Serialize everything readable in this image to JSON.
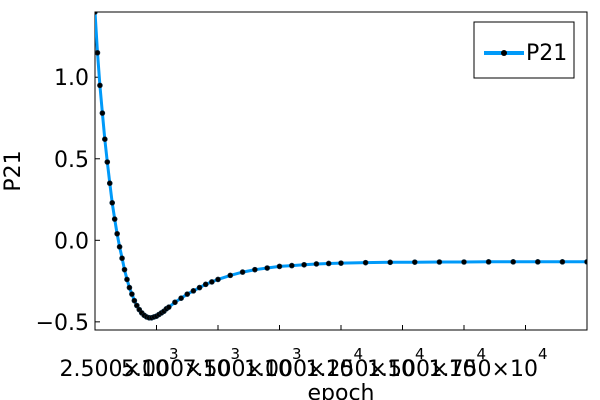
{
  "chart_data": {
    "type": "scatter",
    "xlabel": "epoch",
    "ylabel": "P21",
    "xlim": [
      0,
      20000
    ],
    "ylim": [
      -0.55,
      1.4
    ],
    "grid": false,
    "legend_position": "top-right",
    "x_ticks": [
      {
        "value": 2500,
        "mantissa": "2.500",
        "exponent": "3"
      },
      {
        "value": 5000,
        "mantissa": "5.000",
        "exponent": "3"
      },
      {
        "value": 7500,
        "mantissa": "7.500",
        "exponent": "3"
      },
      {
        "value": 10000,
        "mantissa": "1.000",
        "exponent": "4"
      },
      {
        "value": 12500,
        "mantissa": "1.250",
        "exponent": "4"
      },
      {
        "value": 15000,
        "mantissa": "1.500",
        "exponent": "4"
      },
      {
        "value": 17500,
        "mantissa": "1.750",
        "exponent": "4"
      }
    ],
    "y_ticks": [
      {
        "value": -0.5,
        "label": "−0.5"
      },
      {
        "value": 0.0,
        "label": "0.0"
      },
      {
        "value": 0.5,
        "label": "0.5"
      },
      {
        "value": 1.0,
        "label": "1.0"
      }
    ],
    "series": [
      {
        "name": "P21",
        "color": "#009AF9",
        "marker_color": "#000000",
        "points": [
          [
            0,
            1.4
          ],
          [
            100,
            1.15
          ],
          [
            200,
            0.95
          ],
          [
            300,
            0.78
          ],
          [
            400,
            0.62
          ],
          [
            500,
            0.48
          ],
          [
            600,
            0.35
          ],
          [
            700,
            0.23
          ],
          [
            800,
            0.13
          ],
          [
            900,
            0.04
          ],
          [
            1000,
            -0.04
          ],
          [
            1100,
            -0.11
          ],
          [
            1200,
            -0.18
          ],
          [
            1300,
            -0.24
          ],
          [
            1400,
            -0.29
          ],
          [
            1500,
            -0.33
          ],
          [
            1600,
            -0.37
          ],
          [
            1700,
            -0.4
          ],
          [
            1800,
            -0.425
          ],
          [
            1900,
            -0.445
          ],
          [
            2000,
            -0.46
          ],
          [
            2100,
            -0.47
          ],
          [
            2200,
            -0.475
          ],
          [
            2300,
            -0.475
          ],
          [
            2400,
            -0.47
          ],
          [
            2500,
            -0.465
          ],
          [
            2600,
            -0.455
          ],
          [
            2700,
            -0.445
          ],
          [
            2800,
            -0.435
          ],
          [
            2900,
            -0.42
          ],
          [
            3000,
            -0.41
          ],
          [
            3250,
            -0.38
          ],
          [
            3500,
            -0.355
          ],
          [
            3750,
            -0.33
          ],
          [
            4000,
            -0.31
          ],
          [
            4250,
            -0.29
          ],
          [
            4500,
            -0.27
          ],
          [
            4750,
            -0.255
          ],
          [
            5000,
            -0.24
          ],
          [
            5500,
            -0.215
          ],
          [
            6000,
            -0.195
          ],
          [
            6500,
            -0.18
          ],
          [
            7000,
            -0.17
          ],
          [
            7500,
            -0.16
          ],
          [
            8000,
            -0.155
          ],
          [
            8500,
            -0.15
          ],
          [
            9000,
            -0.145
          ],
          [
            9500,
            -0.142
          ],
          [
            10000,
            -0.14
          ],
          [
            11000,
            -0.137
          ],
          [
            12000,
            -0.135
          ],
          [
            13000,
            -0.134
          ],
          [
            14000,
            -0.133
          ],
          [
            15000,
            -0.133
          ],
          [
            16000,
            -0.132
          ],
          [
            17000,
            -0.132
          ],
          [
            18000,
            -0.132
          ],
          [
            19000,
            -0.132
          ],
          [
            20000,
            -0.132
          ]
        ]
      }
    ]
  }
}
